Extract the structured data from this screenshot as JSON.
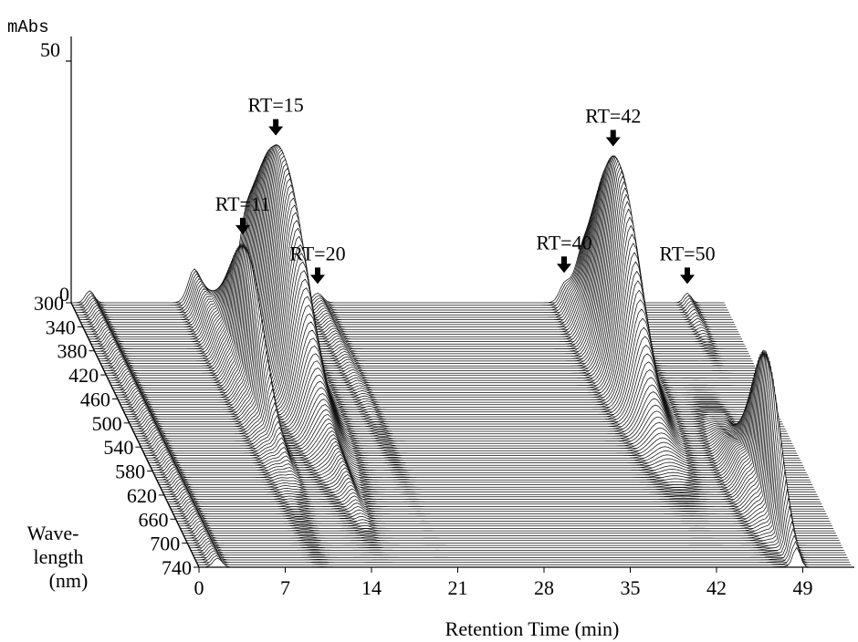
{
  "chart_data": {
    "type": "area",
    "subtype": "3d-waterfall",
    "y_axis": {
      "label": "mAbs",
      "ticks": [
        "0",
        "50"
      ],
      "range": [
        0,
        50
      ]
    },
    "x_axis": {
      "label": "Retention Time (min)",
      "ticks": [
        "0",
        "7",
        "14",
        "21",
        "28",
        "35",
        "42",
        "49"
      ],
      "range": [
        0,
        53
      ]
    },
    "z_axis": {
      "label_lines": [
        "Wave-",
        "length",
        "(nm)"
      ],
      "ticks": [
        "300",
        "340",
        "380",
        "420",
        "460",
        "500",
        "540",
        "580",
        "620",
        "660",
        "700",
        "740"
      ],
      "range": [
        300,
        740
      ]
    },
    "peak_labels": [
      {
        "text": "RT=11",
        "rt": 11
      },
      {
        "text": "RT=15",
        "rt": 15
      },
      {
        "text": "RT=20",
        "rt": 20
      },
      {
        "text": "RT=40",
        "rt": 40
      },
      {
        "text": "RT=42",
        "rt": 42
      },
      {
        "text": "RT=50",
        "rt": 50
      }
    ],
    "peaks": [
      {
        "rt": 1.5,
        "nm_center": 300,
        "nm_width": 600,
        "height": 2.5,
        "width": 0.35
      },
      {
        "rt": 11,
        "nm_center": 440,
        "nm_width": 60,
        "height": 28,
        "width": 0.35
      },
      {
        "rt": 10,
        "nm_center": 300,
        "nm_width": 150,
        "height": 7,
        "width": 0.5
      },
      {
        "rt": 15,
        "nm_center": 390,
        "nm_width": 80,
        "height": 42,
        "width": 0.9
      },
      {
        "rt": 14,
        "nm_center": 320,
        "nm_width": 110,
        "height": 6,
        "width": 0.5
      },
      {
        "rt": 20,
        "nm_center": 300,
        "nm_width": 120,
        "height": 2,
        "width": 0.4
      },
      {
        "rt": 15,
        "nm_center": 600,
        "nm_width": 40,
        "height": 3,
        "width": 0.4
      },
      {
        "rt": 40,
        "nm_center": 300,
        "nm_width": 60,
        "height": 3,
        "width": 0.4
      },
      {
        "rt": 42,
        "nm_center": 400,
        "nm_width": 70,
        "height": 42,
        "width": 0.9
      },
      {
        "rt": 50,
        "nm_center": 300,
        "nm_width": 40,
        "height": 2,
        "width": 0.3
      },
      {
        "rt": 48.5,
        "nm_center": 640,
        "nm_width": 50,
        "height": 30,
        "width": 0.3
      },
      {
        "rt": 47.5,
        "nm_center": 600,
        "nm_width": 50,
        "height": 6,
        "width": 0.7
      }
    ],
    "grid": false,
    "colors": {
      "line": "#111111",
      "fill": "#ffffff",
      "background": "#ffffff"
    }
  }
}
